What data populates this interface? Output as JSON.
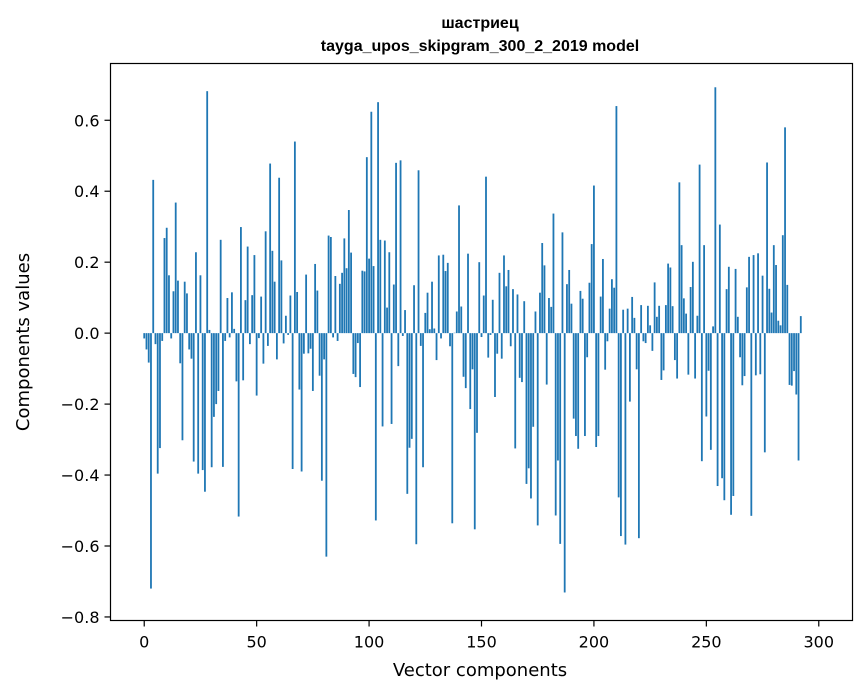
{
  "chart_data": {
    "type": "bar",
    "title": "шастриец",
    "subtitle": "tayga_upos_skipgram_300_2_2019 model",
    "xlabel": "Vector components",
    "ylabel": "Components values",
    "xlim": [
      -15,
      315
    ],
    "ylim": [
      -0.81,
      0.76
    ],
    "xticks": [
      0,
      50,
      100,
      150,
      200,
      250,
      300
    ],
    "yticks": [
      -0.8,
      -0.6,
      -0.4,
      -0.2,
      0.0,
      0.2,
      0.4,
      0.6
    ],
    "ytick_labels": [
      "−0.8",
      "−0.6",
      "−0.4",
      "−0.2",
      "0.0",
      "0.2",
      "0.4",
      "0.6"
    ],
    "xtick_labels": [
      "0",
      "50",
      "100",
      "150",
      "200",
      "250",
      "300"
    ],
    "bar_color": "#1f77b4",
    "grid": false,
    "values": [
      -0.015,
      -0.046,
      -0.083,
      -0.72,
      0.432,
      -0.031,
      -0.396,
      -0.324,
      -0.022,
      0.268,
      0.297,
      0.163,
      -0.015,
      0.118,
      0.368,
      0.148,
      -0.085,
      -0.302,
      0.145,
      0.112,
      -0.046,
      -0.072,
      -0.362,
      0.228,
      -0.396,
      0.163,
      -0.386,
      -0.447,
      0.682,
      0.009,
      -0.378,
      -0.236,
      -0.2,
      -0.163,
      0.263,
      -0.377,
      -0.022,
      0.099,
      -0.012,
      0.115,
      0.012,
      -0.136,
      -0.517,
      0.299,
      -0.133,
      0.093,
      0.244,
      -0.031,
      0.107,
      0.22,
      -0.176,
      -0.014,
      0.103,
      -0.086,
      0.287,
      -0.036,
      0.478,
      0.232,
      0.145,
      -0.074,
      0.438,
      0.205,
      -0.029,
      0.049,
      -0.005,
      0.106,
      -0.383,
      0.54,
      0.116,
      -0.159,
      -0.39,
      -0.058,
      0.165,
      -0.057,
      -0.044,
      -0.163,
      0.195,
      0.12,
      -0.12,
      -0.416,
      -0.074,
      -0.63,
      0.275,
      0.271,
      -0.012,
      0.161,
      -0.022,
      0.139,
      0.17,
      0.267,
      0.183,
      0.347,
      0.227,
      -0.115,
      -0.124,
      -0.028,
      -0.152,
      0.176,
      0.174,
      0.496,
      0.21,
      0.624,
      0.189,
      -0.528,
      0.651,
      0.263,
      -0.263,
      0.261,
      0.072,
      0.228,
      -0.256,
      0.137,
      0.48,
      -0.093,
      0.487,
      -0.008,
      0.065,
      -0.453,
      -0.323,
      -0.298,
      0.135,
      -0.595,
      0.459,
      -0.036,
      -0.378,
      0.057,
      0.114,
      0.011,
      0.145,
      0.013,
      -0.076,
      0.219,
      -0.015,
      0.221,
      0.175,
      0.198,
      -0.037,
      -0.536,
      0.001,
      0.061,
      0.36,
      0.075,
      -0.123,
      -0.155,
      0.224,
      -0.214,
      -0.102,
      -0.553,
      -0.281,
      0.2,
      -0.011,
      0.106,
      0.441,
      -0.069,
      -0.005,
      0.094,
      -0.18,
      -0.058,
      0.17,
      -0.072,
      0.219,
      0.132,
      0.178,
      -0.037,
      0.124,
      -0.325,
      0.109,
      -0.126,
      -0.138,
      0.09,
      -0.425,
      -0.381,
      -0.466,
      -0.264,
      0.061,
      -0.542,
      0.114,
      0.254,
      0.191,
      -0.145,
      0.099,
      0.074,
      0.337,
      -0.514,
      -0.359,
      -0.594,
      0.284,
      -0.731,
      0.138,
      0.178,
      0.083,
      -0.241,
      -0.29,
      -0.326,
      0.119,
      0.097,
      -0.29,
      -0.068,
      0.142,
      0.251,
      0.416,
      -0.321,
      -0.29,
      0.103,
      0.209,
      -0.103,
      -0.023,
      0.069,
      0.152,
      0.128,
      0.64,
      -0.463,
      -0.572,
      0.066,
      -0.596,
      0.069,
      -0.193,
      0.102,
      0.043,
      -0.102,
      -0.578,
      0.079,
      -0.023,
      -0.028,
      0.077,
      0.022,
      -0.05,
      0.143,
      0.046,
      0.077,
      -0.132,
      -0.105,
      0.079,
      0.196,
      0.185,
      0.076,
      -0.076,
      -0.128,
      0.425,
      0.248,
      0.098,
      0.055,
      -0.117,
      0.13,
      0.201,
      -0.128,
      0.049,
      0.475,
      -0.361,
      0.248,
      -0.235,
      -0.106,
      -0.329,
      0.019,
      0.693,
      -0.431,
      0.306,
      -0.409,
      -0.471,
      0.124,
      0.187,
      -0.512,
      -0.459,
      0.181,
      0.046,
      -0.068,
      -0.147,
      -0.121,
      0.129,
      0.215,
      -0.515,
      0.22,
      -0.119,
      0.225,
      -0.116,
      0.162,
      -0.336,
      0.481,
      0.125,
      0.058,
      0.248,
      0.192,
      0.035,
      0.022,
      0.276,
      0.58,
      0.136,
      -0.146,
      -0.148,
      -0.107,
      -0.173,
      -0.359,
      0.048
    ]
  }
}
